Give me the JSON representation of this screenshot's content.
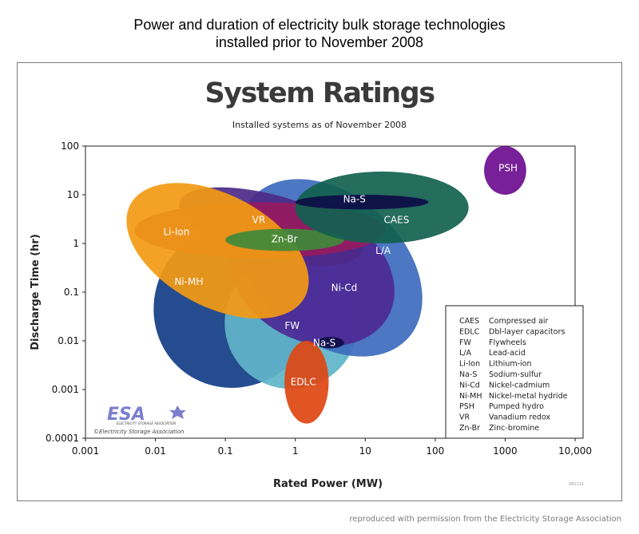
{
  "page": {
    "title_line_1": "Power and duration of electricity bulk storage technologies",
    "title_line_2": "installed prior to November 2008",
    "credit": "reproduced with permission from the Electricity Storage Association"
  },
  "chart_data": {
    "type": "scatter",
    "title": "System Ratings",
    "subtitle": "Installed systems as of November 2008",
    "xlabel": "Rated Power (MW)",
    "ylabel": "Discharge Time (hr)",
    "x_scale": "log",
    "y_scale": "log",
    "xlim": [
      0.001,
      10000
    ],
    "ylim": [
      0.0001,
      100
    ],
    "x_ticks": [
      "0.001",
      "0.01",
      "0.1",
      "1",
      "10",
      "100",
      "1000",
      "10,000"
    ],
    "y_ticks": [
      "0.0001",
      "0.001",
      "0.01",
      "0.1",
      "1",
      "10",
      "100"
    ],
    "grid": false,
    "legend_placement": "bottom-right",
    "regions": [
      {
        "code": "Ni-MH",
        "power_mw": [
          0.01,
          2
        ],
        "discharge_hr": [
          0.001,
          3
        ],
        "color": "#123d85"
      },
      {
        "code": "FW",
        "power_mw": [
          0.1,
          8
        ],
        "discharge_hr": [
          0.001,
          0.6
        ],
        "color": "#5fb4c9"
      },
      {
        "code": "L/A",
        "power_mw": [
          0.1,
          100
        ],
        "discharge_hr": [
          0.01,
          10
        ],
        "color": "#3e6bbd"
      },
      {
        "code": "Ni-Cd",
        "power_mw": [
          0.1,
          30
        ],
        "discharge_hr": [
          0.01,
          5
        ],
        "color": "#4d2995"
      },
      {
        "code": "VR",
        "power_mw": [
          0.02,
          10
        ],
        "discharge_hr": [
          0.5,
          10
        ],
        "color": "#4d2a88"
      },
      {
        "code": "Zn-Br",
        "power_mw": [
          0.005,
          20
        ],
        "discharge_hr": [
          0.5,
          7
        ],
        "color": "#951b5e"
      },
      {
        "code": "Li-Ion",
        "power_mw": [
          0.003,
          2
        ],
        "discharge_hr": [
          0.05,
          10
        ],
        "color": "#f39a12"
      },
      {
        "code": "Zn-Br",
        "power_mw": [
          0.1,
          5
        ],
        "discharge_hr": [
          0.7,
          2
        ],
        "color": "#3f8a3a"
      },
      {
        "code": "CAES",
        "power_mw": [
          1,
          300
        ],
        "discharge_hr": [
          1,
          30
        ],
        "color": "#12614f"
      },
      {
        "code": "Na-S",
        "power_mw": [
          1,
          80
        ],
        "discharge_hr": [
          5,
          10
        ],
        "color": "#0d0d45"
      },
      {
        "code": "Na-S",
        "power_mw": [
          2,
          5
        ],
        "discharge_hr": [
          0.007,
          0.012
        ],
        "color": "#0d0d45"
      },
      {
        "code": "EDLC",
        "power_mw": [
          0.7,
          3
        ],
        "discharge_hr": [
          0.0002,
          0.01
        ],
        "color": "#de4712"
      },
      {
        "code": "PSH",
        "power_mw": [
          500,
          2000
        ],
        "discharge_hr": [
          10,
          100
        ],
        "color": "#6b0d8f"
      }
    ],
    "labels": [
      {
        "text": "PSH",
        "x": 1100,
        "y": 35
      },
      {
        "text": "Na-S",
        "x": 7,
        "y": 8
      },
      {
        "text": "CAES",
        "x": 28,
        "y": 3
      },
      {
        "text": "VR",
        "x": 0.3,
        "y": 3
      },
      {
        "text": "Li-Ion",
        "x": 0.02,
        "y": 1.7
      },
      {
        "text": "Zn-Br",
        "x": 0.7,
        "y": 1.2
      },
      {
        "text": "L/A",
        "x": 18,
        "y": 0.7
      },
      {
        "text": "Ni-MH",
        "x": 0.03,
        "y": 0.16
      },
      {
        "text": "Ni-Cd",
        "x": 5,
        "y": 0.12
      },
      {
        "text": "FW",
        "x": 0.9,
        "y": 0.02
      },
      {
        "text": "Na-S",
        "x": 2.6,
        "y": 0.009
      },
      {
        "text": "EDLC",
        "x": 1.3,
        "y": 0.0014
      }
    ],
    "legend": [
      {
        "code": "CAES",
        "name": "Compressed air"
      },
      {
        "code": "EDLC",
        "name": "Dbl-layer capacitors"
      },
      {
        "code": "FW",
        "name": "Flywheels"
      },
      {
        "code": "L/A",
        "name": "Lead-acid"
      },
      {
        "code": "Li-Ion",
        "name": "Lithium-ion"
      },
      {
        "code": "Na-S",
        "name": "Sodium-sulfur"
      },
      {
        "code": "Ni-Cd",
        "name": "Nickel-cadmium"
      },
      {
        "code": "Ni-MH",
        "name": "Nickel-metal hydride"
      },
      {
        "code": "PSH",
        "name": "Pumped hydro"
      },
      {
        "code": "VR",
        "name": "Vanadium redox"
      },
      {
        "code": "Zn-Br",
        "name": "Zinc-bromine"
      }
    ],
    "logo": {
      "text": "ESA",
      "subtitle": "ELECTRICITY STORAGE ASSOCIATION",
      "copyright": "©Electricity Storage Association"
    },
    "figure_code": "081111"
  }
}
